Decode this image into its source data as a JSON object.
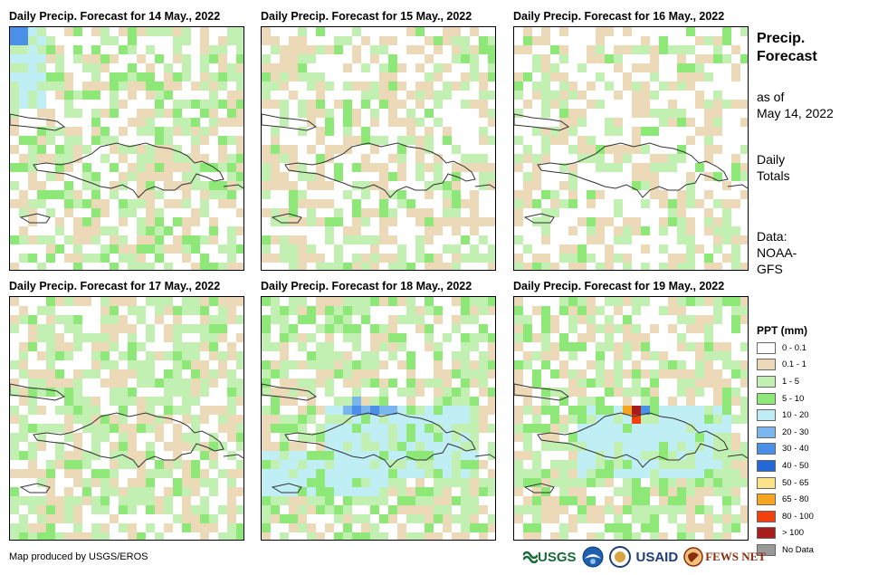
{
  "panels": [
    {
      "title": "Daily Precip. Forecast for 14 May., 2022"
    },
    {
      "title": "Daily Precip. Forecast for 15 May., 2022"
    },
    {
      "title": "Daily Precip. Forecast for 16 May., 2022"
    },
    {
      "title": "Daily Precip. Forecast for 17 May., 2022"
    },
    {
      "title": "Daily Precip. Forecast for 18 May., 2022"
    },
    {
      "title": "Daily Precip. Forecast for 19 May., 2022"
    }
  ],
  "side": {
    "title_line1": "Precip.",
    "title_line2": "Forecast",
    "asof_line1": "as of",
    "asof_line2": "May 14, 2022",
    "totals_line1": "Daily",
    "totals_line2": "Totals",
    "data_line1": "Data:",
    "data_line2": "NOAA-",
    "data_line3": "GFS"
  },
  "legend": {
    "title": "PPT (mm)",
    "items": [
      {
        "label": "0 - 0.1",
        "color": "#ffffff"
      },
      {
        "label": "0.1 - 1",
        "color": "#ecd9b8"
      },
      {
        "label": "1 - 5",
        "color": "#c2f0b2"
      },
      {
        "label": "5 - 10",
        "color": "#8ee877"
      },
      {
        "label": "10 - 20",
        "color": "#bfeff5"
      },
      {
        "label": "20 - 30",
        "color": "#7ab5ee"
      },
      {
        "label": "30 - 40",
        "color": "#4a90e8"
      },
      {
        "label": "40 - 50",
        "color": "#2367d8"
      },
      {
        "label": "50 - 65",
        "color": "#fce38a"
      },
      {
        "label": "65 - 80",
        "color": "#f7a51e"
      },
      {
        "label": "80 - 100",
        "color": "#f2410f"
      },
      {
        "label": "> 100",
        "color": "#a81c1c"
      },
      {
        "label": "No Data",
        "color": "#999999"
      }
    ]
  },
  "credit": "Map produced by USGS/EROS",
  "logos": {
    "usgs": "USGS",
    "usaid": "USAID",
    "fews": "FEWS NET"
  }
}
